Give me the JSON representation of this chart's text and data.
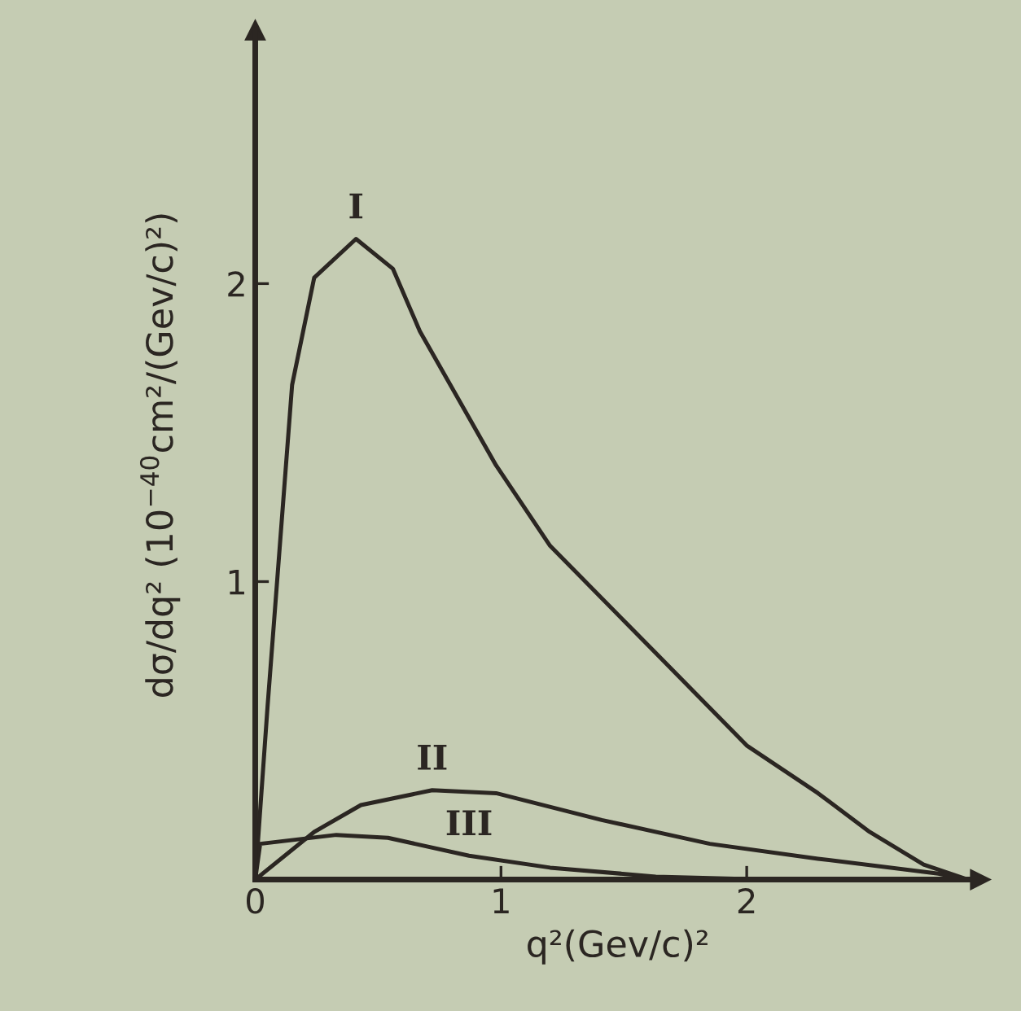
{
  "chart_data": {
    "type": "line",
    "xlabel": "q²(Gev/c)²",
    "ylabel": "dσ/dq² (10$^{−40}$cm²/(Gev/c)²)",
    "xlim": [
      0,
      2.95
    ],
    "ylim": [
      0,
      2.85
    ],
    "xticks": [
      0,
      1,
      2
    ],
    "yticks": [
      1,
      2
    ],
    "grid": false,
    "legend": false,
    "marker": "none",
    "line_style": "solid",
    "series": [
      {
        "name": "I",
        "color": "#2b2622",
        "x": [
          0,
          0.05,
          0.1,
          0.15,
          0.24,
          0.41,
          0.56,
          0.67,
          0.98,
          1.2,
          1.63,
          2.0,
          2.29,
          2.5,
          2.72,
          2.9
        ],
        "values": [
          0,
          0.58,
          1.12,
          1.66,
          2.02,
          2.15,
          2.05,
          1.84,
          1.39,
          1.12,
          0.76,
          0.45,
          0.29,
          0.16,
          0.05,
          0
        ]
      },
      {
        "name": "II",
        "color": "#2b2622",
        "x": [
          0,
          0.24,
          0.43,
          0.72,
          0.98,
          1.41,
          1.85,
          2.29,
          2.78,
          2.9
        ],
        "values": [
          0,
          0.16,
          0.25,
          0.3,
          0.29,
          0.2,
          0.12,
          0.07,
          0.02,
          0
        ]
      },
      {
        "name": "III",
        "color": "#2b2622",
        "x": [
          0,
          0.02,
          0.33,
          0.54,
          0.87,
          1.2,
          1.63,
          2.07
        ],
        "values": [
          0,
          0.12,
          0.15,
          0.14,
          0.08,
          0.04,
          0.01,
          0
        ]
      }
    ]
  }
}
